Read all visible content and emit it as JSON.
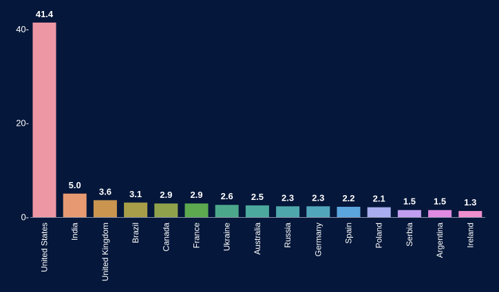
{
  "chart_data": {
    "type": "bar",
    "categories": [
      "United States",
      "India",
      "United Kingdom",
      "Brazil",
      "Canada",
      "France",
      "Ukraine",
      "Australia",
      "Russia",
      "Germany",
      "Spain",
      "Poland",
      "Serbia",
      "Argentina",
      "Ireland"
    ],
    "values": [
      41.4,
      5.0,
      3.6,
      3.1,
      2.9,
      2.9,
      2.6,
      2.5,
      2.3,
      2.3,
      2.2,
      2.1,
      1.5,
      1.5,
      1.3
    ],
    "value_labels": [
      "41.4",
      "5.0",
      "3.6",
      "3.1",
      "2.9",
      "2.9",
      "2.6",
      "2.5",
      "2.3",
      "2.3",
      "2.2",
      "2.1",
      "1.5",
      "1.5",
      "1.3"
    ],
    "colors": [
      "#ee97a4",
      "#e79a72",
      "#c9954f",
      "#a89d48",
      "#8fa24b",
      "#5ca950",
      "#4ca88a",
      "#4ba99d",
      "#4ea7ab",
      "#52a6bb",
      "#5aa6dd",
      "#a9aef0",
      "#c29ef0",
      "#e18ae1",
      "#ef8fce"
    ],
    "yticks": [
      "0-",
      "20-",
      "40-"
    ],
    "ytick_values": [
      0,
      20,
      40
    ],
    "ylim": [
      0,
      43.5
    ],
    "title": "",
    "xlabel": "",
    "ylabel": "",
    "grid": false,
    "legend": "none"
  }
}
